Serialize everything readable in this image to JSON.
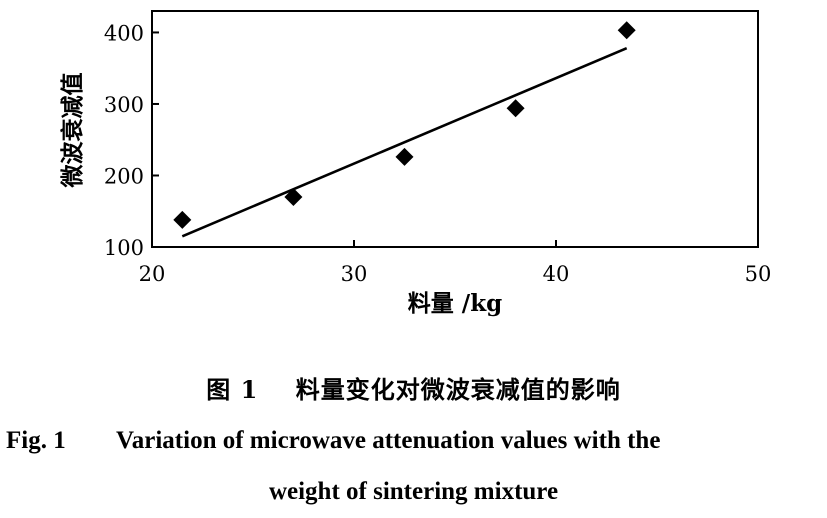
{
  "chart_data": {
    "type": "scatter",
    "title": "",
    "xlabel": "料量 /kg",
    "ylabel": "微波衰减值",
    "xlim": [
      20,
      50
    ],
    "ylim": [
      100,
      430
    ],
    "xticks": [
      20,
      30,
      40,
      50
    ],
    "yticks": [
      100,
      200,
      300,
      400
    ],
    "grid": false,
    "series": [
      {
        "x": [
          21.5,
          27.0,
          32.5,
          38.0,
          43.5
        ],
        "y": [
          138,
          170,
          226,
          294,
          403
        ]
      }
    ],
    "trendline": {
      "x": [
        21.5,
        43.5
      ],
      "y": [
        115,
        378
      ]
    }
  },
  "caption": {
    "cn_label": "图 1",
    "cn_text": "料量变化对微波衰减值的影响",
    "en_label": "Fig. 1",
    "en_line1": "Variation of microwave attenuation values with the",
    "en_line2": "weight of sintering mixture"
  }
}
